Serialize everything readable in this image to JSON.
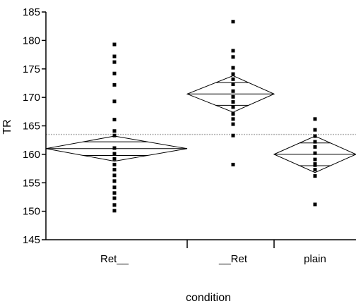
{
  "chart_data": {
    "type": "scatter",
    "title": "",
    "xlabel": "condition",
    "ylabel": "TR",
    "ylim": [
      145,
      185
    ],
    "yticks": [
      "145",
      "150",
      "155",
      "160",
      "165",
      "170",
      "175",
      "180",
      "185"
    ],
    "categories": [
      "Ret__",
      "__Ret",
      "plain"
    ],
    "grand_mean": 163.5,
    "groups": [
      {
        "category": "Ret__",
        "mean": 161.0,
        "ci_low": 158.8,
        "ci_high": 163.2,
        "inner_low": 159.8,
        "inner_high": 162.2,
        "points": [
          179.3,
          177.2,
          176.2,
          174.2,
          172.2,
          169.3,
          166.1,
          164.1,
          163.3,
          161.1,
          160.1,
          159.2,
          158.2,
          157.3,
          156.3,
          155.3,
          154.2,
          153.2,
          152.3,
          151.1,
          150.1
        ]
      },
      {
        "category": "__Ret",
        "mean": 170.6,
        "ci_low": 167.4,
        "ci_high": 173.8,
        "inner_low": 168.6,
        "inner_high": 172.6,
        "points": [
          183.3,
          178.2,
          177.1,
          175.2,
          174.1,
          173.2,
          172.3,
          171.1,
          170.1,
          169.2,
          168.3,
          167.1,
          166.2,
          165.3,
          163.3,
          158.2
        ]
      },
      {
        "category": "plain",
        "mean": 160.0,
        "ci_low": 156.8,
        "ci_high": 163.2,
        "inner_low": 158.0,
        "inner_high": 162.0,
        "points": [
          166.2,
          164.3,
          163.2,
          162.2,
          161.3,
          160.2,
          159.1,
          158.3,
          158.1,
          157.3,
          156.2,
          151.2
        ]
      }
    ],
    "colors": {
      "points": "#000000",
      "diamond": "#000000",
      "grand_mean": "#b0b0b0",
      "axis": "#000000"
    }
  }
}
